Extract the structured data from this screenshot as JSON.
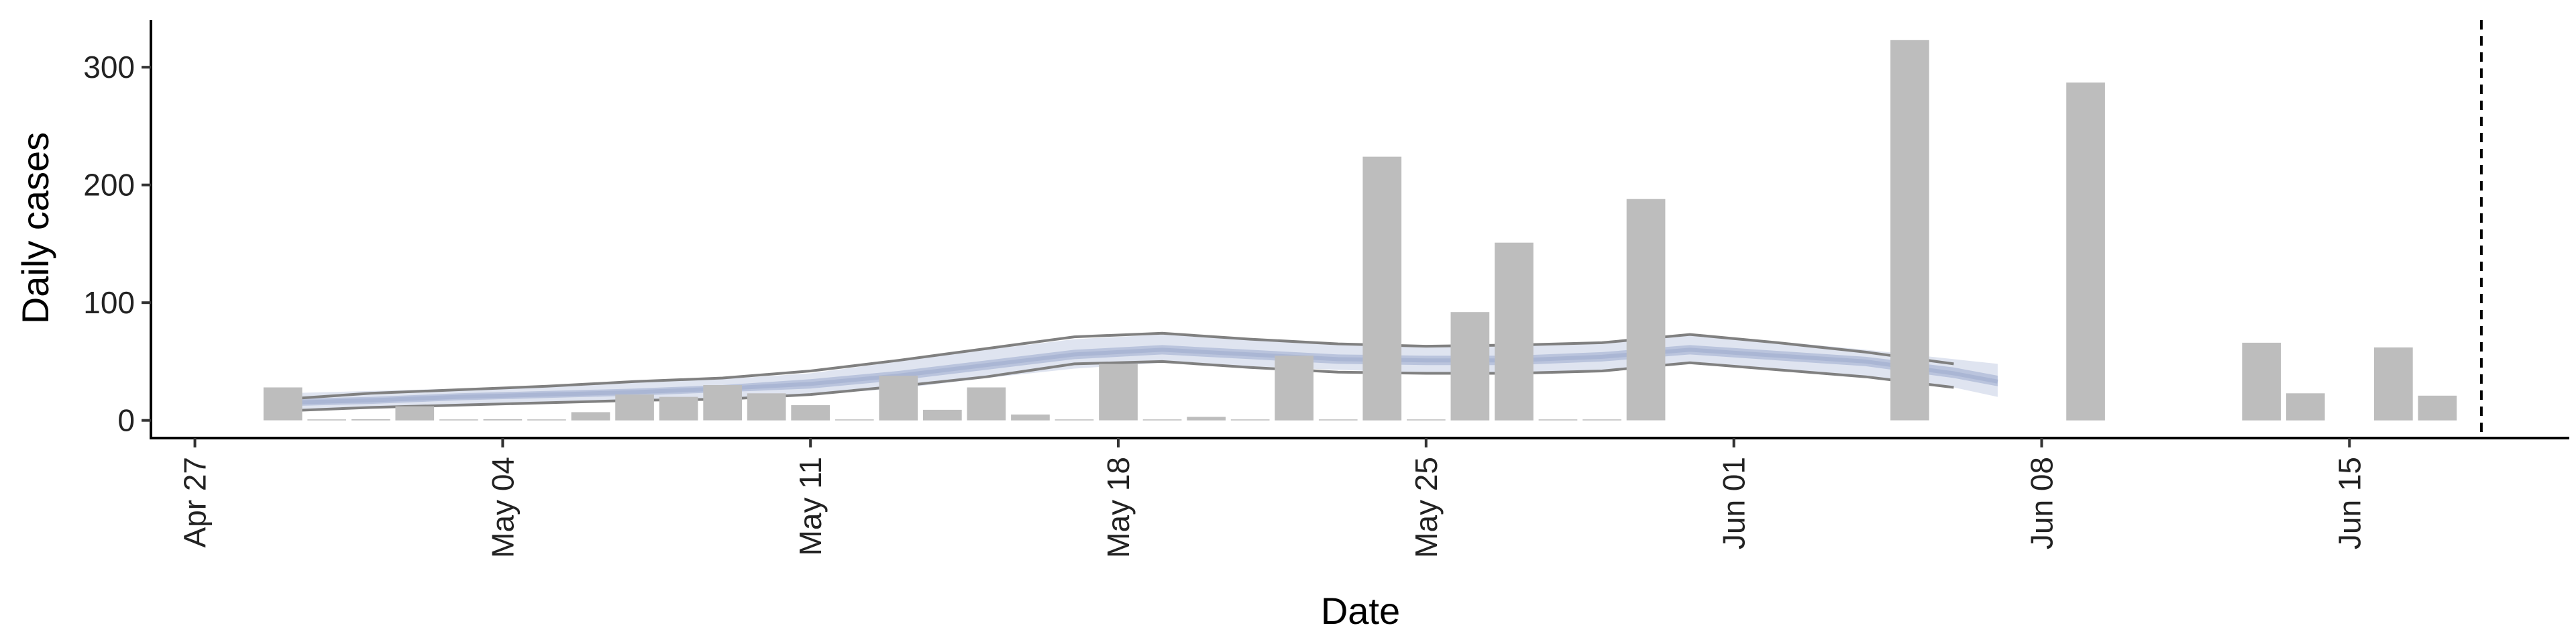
{
  "chart_data": {
    "type": "bar",
    "xlabel": "Date",
    "ylabel": "Daily cases",
    "x_axis": {
      "type": "date",
      "range": [
        "2020-04-26",
        "2020-06-20"
      ],
      "tick_labels": [
        "Apr 27",
        "May 04",
        "May 11",
        "May 18",
        "May 25",
        "Jun 01",
        "Jun 08",
        "Jun 15"
      ],
      "tick_dates": [
        "2020-04-27",
        "2020-05-04",
        "2020-05-11",
        "2020-05-18",
        "2020-05-25",
        "2020-06-01",
        "2020-06-08",
        "2020-06-15"
      ]
    },
    "y_axis": {
      "range": [
        -15,
        340
      ],
      "ticks": [
        0,
        100,
        200,
        300
      ]
    },
    "grid": false,
    "bars": {
      "color": "#bdbdbd",
      "points": [
        {
          "date": "2020-04-29",
          "value": 28
        },
        {
          "date": "2020-04-30",
          "value": 0
        },
        {
          "date": "2020-05-01",
          "value": 1
        },
        {
          "date": "2020-05-02",
          "value": 12
        },
        {
          "date": "2020-05-03",
          "value": 0
        },
        {
          "date": "2020-05-04",
          "value": 1
        },
        {
          "date": "2020-05-05",
          "value": 0
        },
        {
          "date": "2020-05-06",
          "value": 7
        },
        {
          "date": "2020-05-07",
          "value": 22
        },
        {
          "date": "2020-05-08",
          "value": 20
        },
        {
          "date": "2020-05-09",
          "value": 30
        },
        {
          "date": "2020-05-10",
          "value": 23
        },
        {
          "date": "2020-05-11",
          "value": 13
        },
        {
          "date": "2020-05-12",
          "value": 0
        },
        {
          "date": "2020-05-13",
          "value": 38
        },
        {
          "date": "2020-05-14",
          "value": 9
        },
        {
          "date": "2020-05-15",
          "value": 28
        },
        {
          "date": "2020-05-16",
          "value": 5
        },
        {
          "date": "2020-05-17",
          "value": 0
        },
        {
          "date": "2020-05-18",
          "value": 48
        },
        {
          "date": "2020-05-19",
          "value": 0
        },
        {
          "date": "2020-05-20",
          "value": 3
        },
        {
          "date": "2020-05-21",
          "value": 0
        },
        {
          "date": "2020-05-22",
          "value": 55
        },
        {
          "date": "2020-05-23",
          "value": 0
        },
        {
          "date": "2020-05-24",
          "value": 224
        },
        {
          "date": "2020-05-25",
          "value": 0
        },
        {
          "date": "2020-05-26",
          "value": 92
        },
        {
          "date": "2020-05-27",
          "value": 151
        },
        {
          "date": "2020-05-28",
          "value": 0
        },
        {
          "date": "2020-05-29",
          "value": 0
        },
        {
          "date": "2020-05-30",
          "value": 188
        },
        {
          "date": "2020-06-05",
          "value": 323
        },
        {
          "date": "2020-06-09",
          "value": 287
        },
        {
          "date": "2020-06-13",
          "value": 66
        },
        {
          "date": "2020-06-14",
          "value": 23
        },
        {
          "date": "2020-06-16",
          "value": 62
        },
        {
          "date": "2020-06-17",
          "value": 21
        }
      ]
    },
    "trend": {
      "band_color": "#c5cde3",
      "inner_band_color": "#aab6d4",
      "bound_line_color": "#808080",
      "dates": [
        "2020-04-29",
        "2020-05-01",
        "2020-05-03",
        "2020-05-05",
        "2020-05-07",
        "2020-05-09",
        "2020-05-11",
        "2020-05-13",
        "2020-05-15",
        "2020-05-17",
        "2020-05-19",
        "2020-05-21",
        "2020-05-23",
        "2020-05-25",
        "2020-05-27",
        "2020-05-29",
        "2020-05-31",
        "2020-06-02",
        "2020-06-04",
        "2020-06-06",
        "2020-06-07"
      ],
      "median": [
        15,
        17,
        20,
        22,
        24,
        27,
        31,
        38,
        47,
        56,
        60,
        56,
        52,
        51,
        51,
        54,
        60,
        55,
        50,
        40,
        33
      ],
      "inner_upper": [
        18,
        20,
        23,
        25,
        27,
        30,
        35,
        42,
        51,
        60,
        64,
        60,
        56,
        55,
        55,
        58,
        64,
        59,
        54,
        45,
        38
      ],
      "inner_lower": [
        12,
        14,
        17,
        19,
        21,
        24,
        27,
        34,
        43,
        52,
        56,
        52,
        48,
        47,
        47,
        50,
        56,
        51,
        46,
        36,
        29
      ],
      "outer_upper": [
        23,
        25,
        27,
        29,
        32,
        35,
        40,
        50,
        60,
        69,
        73,
        68,
        64,
        62,
        63,
        66,
        73,
        67,
        60,
        52,
        48
      ],
      "outer_lower": [
        7,
        10,
        12,
        15,
        17,
        19,
        22,
        27,
        36,
        44,
        49,
        46,
        43,
        40,
        40,
        43,
        50,
        44,
        38,
        28,
        20
      ],
      "upper_line": [
        18,
        23,
        26,
        29,
        33,
        36,
        42,
        51,
        61,
        71,
        74,
        69,
        65,
        63,
        64,
        66,
        73,
        66,
        58,
        48,
        null
      ],
      "lower_line": [
        8,
        11,
        13,
        15,
        17,
        18,
        22,
        29,
        37,
        48,
        50,
        45,
        41,
        40,
        40,
        42,
        49,
        43,
        37,
        28,
        null
      ]
    },
    "vline": {
      "date": "2020-06-18",
      "style": "dashed",
      "color": "#000000"
    }
  }
}
